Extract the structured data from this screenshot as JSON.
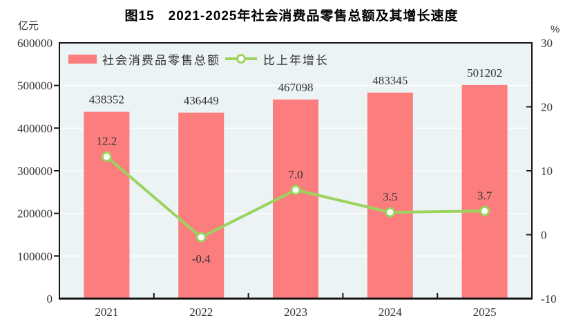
{
  "title": "图15　2021-2025年社会消费品零售总额及其增长速度",
  "units": {
    "left": "亿元",
    "right": "%"
  },
  "legend": {
    "bar_label": "社会消费品零售总额",
    "line_label": "比上年增长"
  },
  "colors": {
    "bar": "#FB7D7D",
    "line": "#9CD35E",
    "marker_fill": "#FFFFFF",
    "plot_bg": "#ECF3F4",
    "grid": "#FFFFFF",
    "frame": "#141414",
    "text": "#333333",
    "title_text": "#000000"
  },
  "chart_data": {
    "type": "bar+line",
    "title": "图15　2021-2025年社会消费品零售总额及其增长速度",
    "categories": [
      "2021",
      "2022",
      "2023",
      "2024",
      "2025"
    ],
    "series": [
      {
        "name": "社会消费品零售总额",
        "type": "bar",
        "axis": "left",
        "unit": "亿元",
        "values": [
          438352,
          436449,
          467098,
          483345,
          501202
        ],
        "labels": [
          "438352",
          "436449",
          "467098",
          "483345",
          "501202"
        ]
      },
      {
        "name": "比上年增长",
        "type": "line",
        "axis": "right",
        "unit": "%",
        "values": [
          12.2,
          -0.4,
          7.0,
          3.5,
          3.7
        ],
        "labels": [
          "12.2",
          "-0.4",
          "7.0",
          "3.5",
          "3.7"
        ]
      }
    ],
    "left_axis": {
      "unit": "亿元",
      "min": 0,
      "max": 600000,
      "step": 100000,
      "ticks": [
        "0",
        "100000",
        "200000",
        "300000",
        "400000",
        "500000",
        "600000"
      ]
    },
    "right_axis": {
      "unit": "%",
      "min": -10,
      "max": 30,
      "step": 10,
      "ticks": [
        "-10",
        "0",
        "10",
        "20",
        "30"
      ]
    },
    "grid": true,
    "legend_position": "top-left-inside"
  }
}
